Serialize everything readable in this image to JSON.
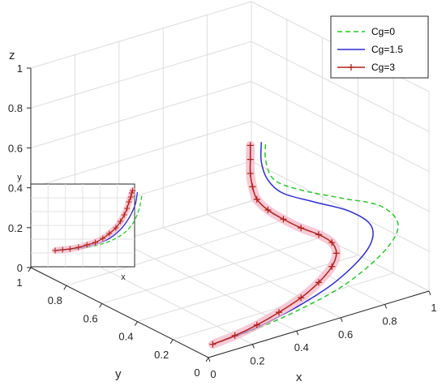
{
  "chart_data": {
    "type": "line",
    "xlabel": "x",
    "ylabel": "y",
    "zlabel": "z",
    "xlim": [
      0,
      1
    ],
    "ylim": [
      0,
      1
    ],
    "zlim": [
      0,
      1
    ],
    "x_ticks": [
      "0",
      "0.2",
      "0.4",
      "0.6",
      "0.8",
      "1"
    ],
    "y_ticks": [
      "0",
      "0.2",
      "0.4",
      "0.6",
      "0.8",
      "1"
    ],
    "z_ticks": [
      "0",
      "0.2",
      "0.4",
      "0.6",
      "0.8",
      "1"
    ],
    "grid": true,
    "legend_position": "top-right",
    "series": [
      {
        "name": "Cg=0",
        "color": "#22cc22",
        "line_style": "dashed",
        "marker": "none",
        "points": [
          {
            "x": 0.02,
            "y": 0.0,
            "z": 0.06
          },
          {
            "x": 0.2,
            "y": 0.0,
            "z": 0.07
          },
          {
            "x": 0.4,
            "y": 0.0,
            "z": 0.1
          },
          {
            "x": 0.62,
            "y": 0.0,
            "z": 0.16
          },
          {
            "x": 0.8,
            "y": 0.0,
            "z": 0.27
          },
          {
            "x": 0.86,
            "y": 0.0,
            "z": 0.38
          },
          {
            "x": 0.78,
            "y": 0.0,
            "z": 0.5
          },
          {
            "x": 0.6,
            "y": 0.0,
            "z": 0.6
          },
          {
            "x": 0.42,
            "y": 0.0,
            "z": 0.7
          },
          {
            "x": 0.3,
            "y": 0.0,
            "z": 0.79
          },
          {
            "x": 0.26,
            "y": 0.0,
            "z": 0.9
          },
          {
            "x": 0.26,
            "y": 0.0,
            "z": 1.0
          }
        ]
      },
      {
        "name": "Cg=1.5",
        "color": "#2b2bd6",
        "line_style": "solid",
        "marker": "none",
        "points": [
          {
            "x": 0.02,
            "y": 0.0,
            "z": 0.06
          },
          {
            "x": 0.2,
            "y": 0.0,
            "z": 0.075
          },
          {
            "x": 0.4,
            "y": 0.0,
            "z": 0.12
          },
          {
            "x": 0.58,
            "y": 0.0,
            "z": 0.19
          },
          {
            "x": 0.72,
            "y": 0.0,
            "z": 0.3
          },
          {
            "x": 0.74,
            "y": 0.0,
            "z": 0.41
          },
          {
            "x": 0.64,
            "y": 0.0,
            "z": 0.52
          },
          {
            "x": 0.48,
            "y": 0.0,
            "z": 0.62
          },
          {
            "x": 0.34,
            "y": 0.0,
            "z": 0.71
          },
          {
            "x": 0.27,
            "y": 0.0,
            "z": 0.8
          },
          {
            "x": 0.24,
            "y": 0.0,
            "z": 0.9
          },
          {
            "x": 0.24,
            "y": 0.0,
            "z": 1.0
          }
        ]
      },
      {
        "name": "Cg=3",
        "color": "#b5211a",
        "line_style": "solid",
        "marker": "+",
        "points": [
          {
            "x": 0.02,
            "y": 0.0,
            "z": 0.06
          },
          {
            "x": 0.12,
            "y": 0.0,
            "z": 0.07
          },
          {
            "x": 0.22,
            "y": 0.0,
            "z": 0.09
          },
          {
            "x": 0.32,
            "y": 0.0,
            "z": 0.12
          },
          {
            "x": 0.42,
            "y": 0.0,
            "z": 0.16
          },
          {
            "x": 0.5,
            "y": 0.0,
            "z": 0.21
          },
          {
            "x": 0.56,
            "y": 0.0,
            "z": 0.27
          },
          {
            "x": 0.58,
            "y": 0.0,
            "z": 0.33
          },
          {
            "x": 0.56,
            "y": 0.0,
            "z": 0.39
          },
          {
            "x": 0.5,
            "y": 0.0,
            "z": 0.45
          },
          {
            "x": 0.42,
            "y": 0.0,
            "z": 0.51
          },
          {
            "x": 0.34,
            "y": 0.0,
            "z": 0.58
          },
          {
            "x": 0.27,
            "y": 0.0,
            "z": 0.65
          },
          {
            "x": 0.22,
            "y": 0.0,
            "z": 0.72
          },
          {
            "x": 0.2,
            "y": 0.0,
            "z": 0.79
          },
          {
            "x": 0.19,
            "y": 0.0,
            "z": 0.86
          },
          {
            "x": 0.19,
            "y": 0.0,
            "z": 0.93
          },
          {
            "x": 0.19,
            "y": 0.0,
            "z": 1.0
          }
        ]
      }
    ],
    "inset": {
      "xlabel": "x",
      "ylabel": "y",
      "series": [
        {
          "name": "Cg=0",
          "points": [
            {
              "x": 0.0,
              "y": 0.0
            },
            {
              "x": 0.3,
              "y": 0.03
            },
            {
              "x": 0.55,
              "y": 0.1
            },
            {
              "x": 0.72,
              "y": 0.2
            },
            {
              "x": 0.83,
              "y": 0.33
            },
            {
              "x": 0.89,
              "y": 0.48
            },
            {
              "x": 0.92,
              "y": 0.62
            },
            {
              "x": 0.93,
              "y": 0.7
            }
          ]
        },
        {
          "name": "Cg=1.5",
          "points": [
            {
              "x": 0.0,
              "y": 0.0
            },
            {
              "x": 0.3,
              "y": 0.04
            },
            {
              "x": 0.55,
              "y": 0.13
            },
            {
              "x": 0.7,
              "y": 0.26
            },
            {
              "x": 0.8,
              "y": 0.42
            },
            {
              "x": 0.86,
              "y": 0.58
            },
            {
              "x": 0.88,
              "y": 0.72
            }
          ]
        },
        {
          "name": "Cg=3",
          "points": [
            {
              "x": 0.0,
              "y": 0.0
            },
            {
              "x": 0.08,
              "y": 0.01
            },
            {
              "x": 0.16,
              "y": 0.02
            },
            {
              "x": 0.25,
              "y": 0.04
            },
            {
              "x": 0.34,
              "y": 0.07
            },
            {
              "x": 0.43,
              "y": 0.1
            },
            {
              "x": 0.51,
              "y": 0.15
            },
            {
              "x": 0.58,
              "y": 0.21
            },
            {
              "x": 0.65,
              "y": 0.28
            },
            {
              "x": 0.7,
              "y": 0.36
            },
            {
              "x": 0.74,
              "y": 0.44
            },
            {
              "x": 0.77,
              "y": 0.52
            },
            {
              "x": 0.79,
              "y": 0.6
            },
            {
              "x": 0.81,
              "y": 0.66
            },
            {
              "x": 0.82,
              "y": 0.71
            },
            {
              "x": 0.83,
              "y": 0.74
            }
          ]
        }
      ]
    }
  }
}
